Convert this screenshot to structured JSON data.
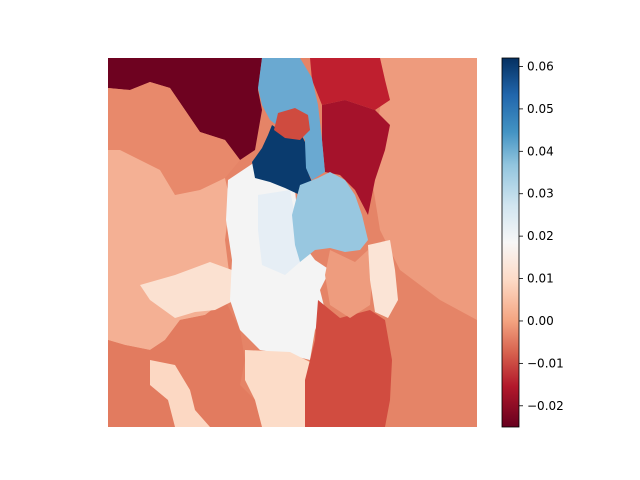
{
  "chart_data": {
    "type": "heatmap",
    "title": "",
    "xlabel": "",
    "ylabel": "",
    "axes_visible": false,
    "colormap": "RdBu",
    "colorbar": {
      "min": -0.025,
      "max": 0.062,
      "ticks": [
        {
          "value": -0.02,
          "label": "−0.02"
        },
        {
          "value": -0.01,
          "label": "−0.01"
        },
        {
          "value": 0.0,
          "label": "0.00"
        },
        {
          "value": 0.01,
          "label": "0.01"
        },
        {
          "value": 0.02,
          "label": "0.02"
        },
        {
          "value": 0.03,
          "label": "0.03"
        },
        {
          "value": 0.04,
          "label": "0.04"
        },
        {
          "value": 0.05,
          "label": "0.05"
        },
        {
          "value": 0.06,
          "label": "0.06"
        }
      ]
    },
    "regions": [
      {
        "name": "top-left-dark",
        "value": -0.024
      },
      {
        "name": "top-center-light-blue",
        "value": 0.037
      },
      {
        "name": "small-red-patch",
        "value": -0.011
      },
      {
        "name": "dark-blue-core",
        "value": 0.062
      },
      {
        "name": "right-light-blue",
        "value": 0.034
      },
      {
        "name": "top-right-red",
        "value": -0.016
      },
      {
        "name": "right-dark-red",
        "value": -0.021
      },
      {
        "name": "top-right-salmon",
        "value": -0.003
      },
      {
        "name": "left-salmon-upper",
        "value": -0.004
      },
      {
        "name": "left-peach-middle",
        "value": 0.005
      },
      {
        "name": "center-white",
        "value": 0.019
      },
      {
        "name": "center-pale-blue",
        "value": 0.024
      },
      {
        "name": "right-salmon",
        "value": 0.002
      },
      {
        "name": "right-pale",
        "value": 0.012
      },
      {
        "name": "bottom-center-light-peach",
        "value": 0.01
      },
      {
        "name": "bottom-left-salmon",
        "value": -0.006
      },
      {
        "name": "bottom-center-red",
        "value": -0.012
      },
      {
        "name": "bottom-right-salmon",
        "value": -0.002
      }
    ]
  }
}
